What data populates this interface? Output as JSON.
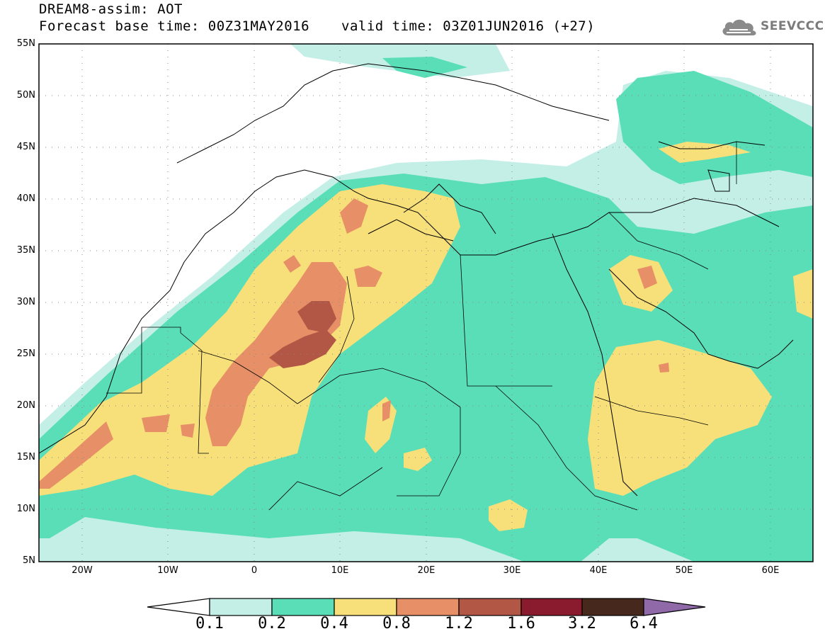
{
  "header": {
    "line1": "DREAM8-assim: AOT",
    "line2": "Forecast base time: 00Z31MAY2016",
    "valid": "valid time: 03Z01JUN2016 (+27)"
  },
  "logo": {
    "icon": "cloud-icon",
    "text": "SEEVCCC"
  },
  "axes": {
    "lat_labels": [
      "55N",
      "50N",
      "45N",
      "40N",
      "35N",
      "30N",
      "25N",
      "20N",
      "15N",
      "10N",
      "5N"
    ],
    "lon_labels": [
      "20W",
      "10W",
      "0",
      "10E",
      "20E",
      "30E",
      "40E",
      "50E",
      "60E"
    ],
    "lat_range": [
      5,
      55
    ],
    "lon_range": [
      -25,
      65
    ]
  },
  "colorbar": {
    "labels": [
      "0.1",
      "0.2",
      "0.4",
      "0.8",
      "1.2",
      "1.6",
      "3.2",
      "6.4"
    ],
    "colors": [
      "#ffffff",
      "#c4efe7",
      "#5adeb8",
      "#f7e07a",
      "#e78f66",
      "#b25746",
      "#8a1b2e",
      "#46281c",
      "#8f69a8"
    ]
  },
  "map_legend": "AOT"
}
